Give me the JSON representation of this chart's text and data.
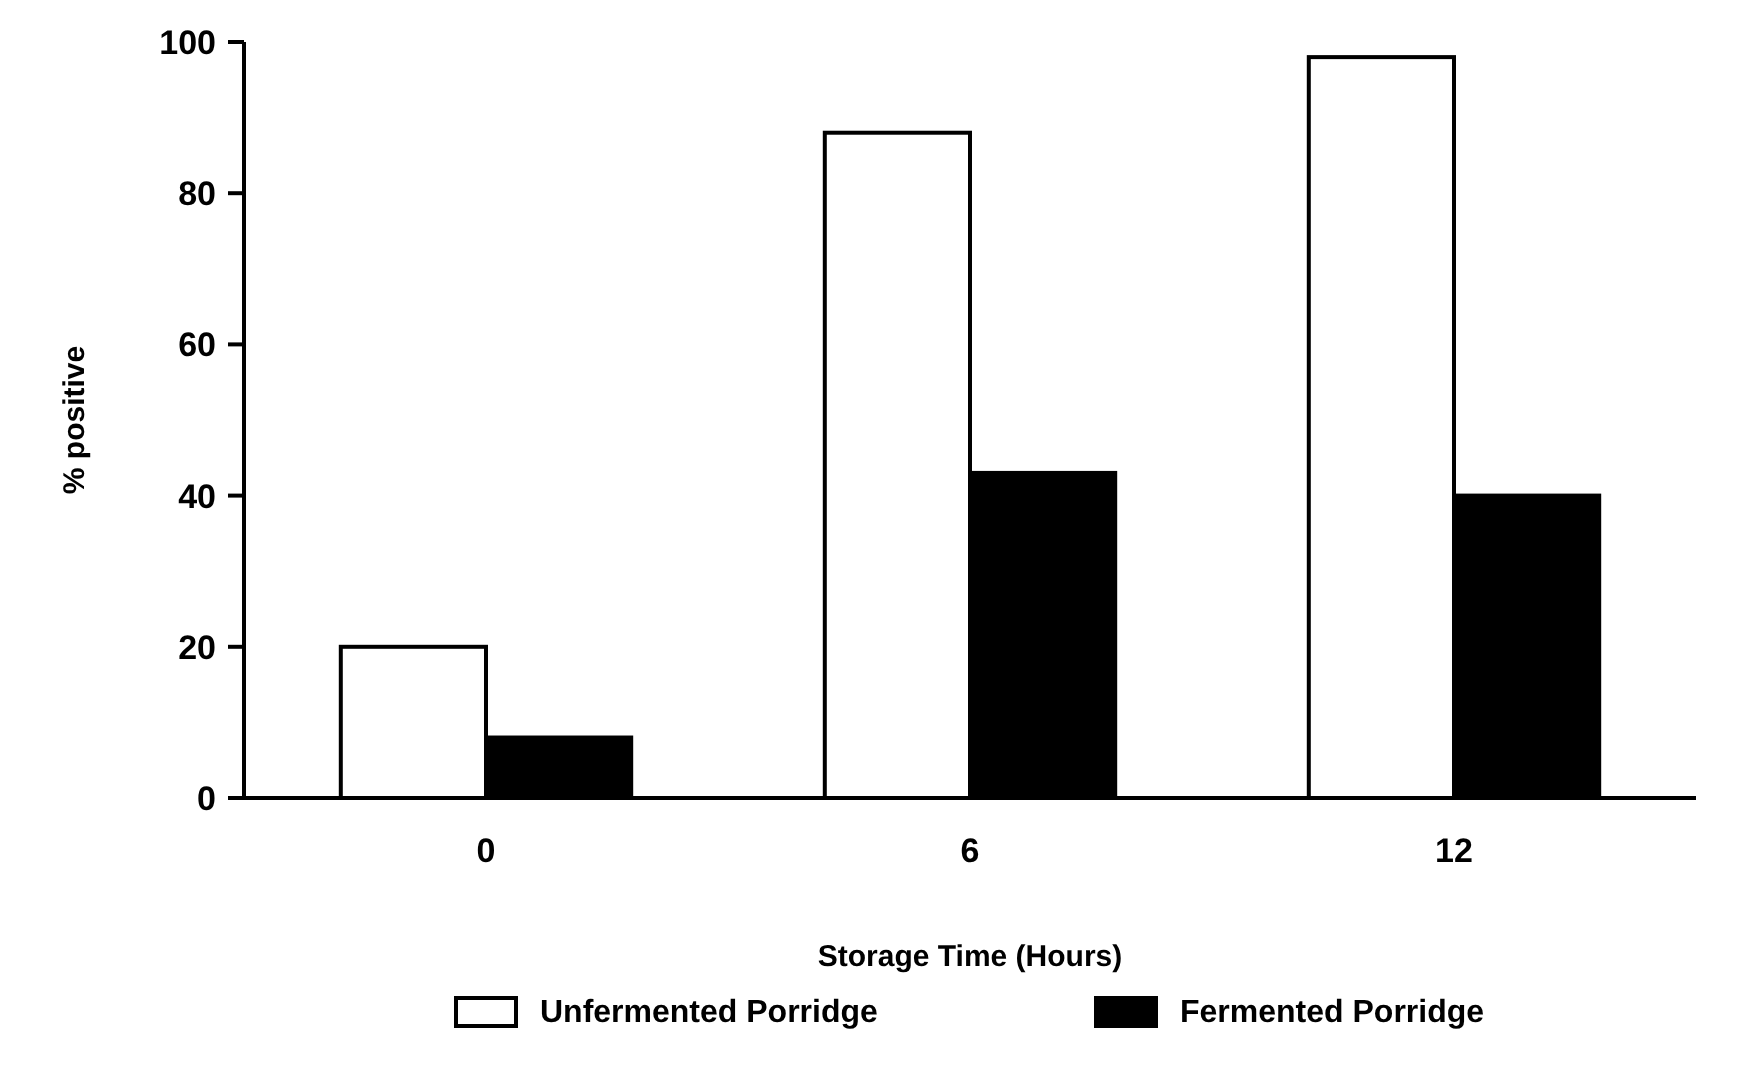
{
  "chart_data": {
    "type": "bar",
    "xlabel": "Storage Time (Hours)",
    "ylabel": "% positive",
    "categories": [
      "0",
      "6",
      "12"
    ],
    "series": [
      {
        "name": "Unfermented Porridge",
        "color": "#ffffff",
        "values": [
          20,
          88,
          98
        ]
      },
      {
        "name": "Fermented Porridge",
        "color": "#000000",
        "values": [
          8,
          43,
          40
        ]
      }
    ],
    "ylim": [
      0,
      100
    ],
    "yticks": [
      0,
      20,
      40,
      60,
      80,
      100
    ],
    "grid": false,
    "legend": "bottom"
  }
}
